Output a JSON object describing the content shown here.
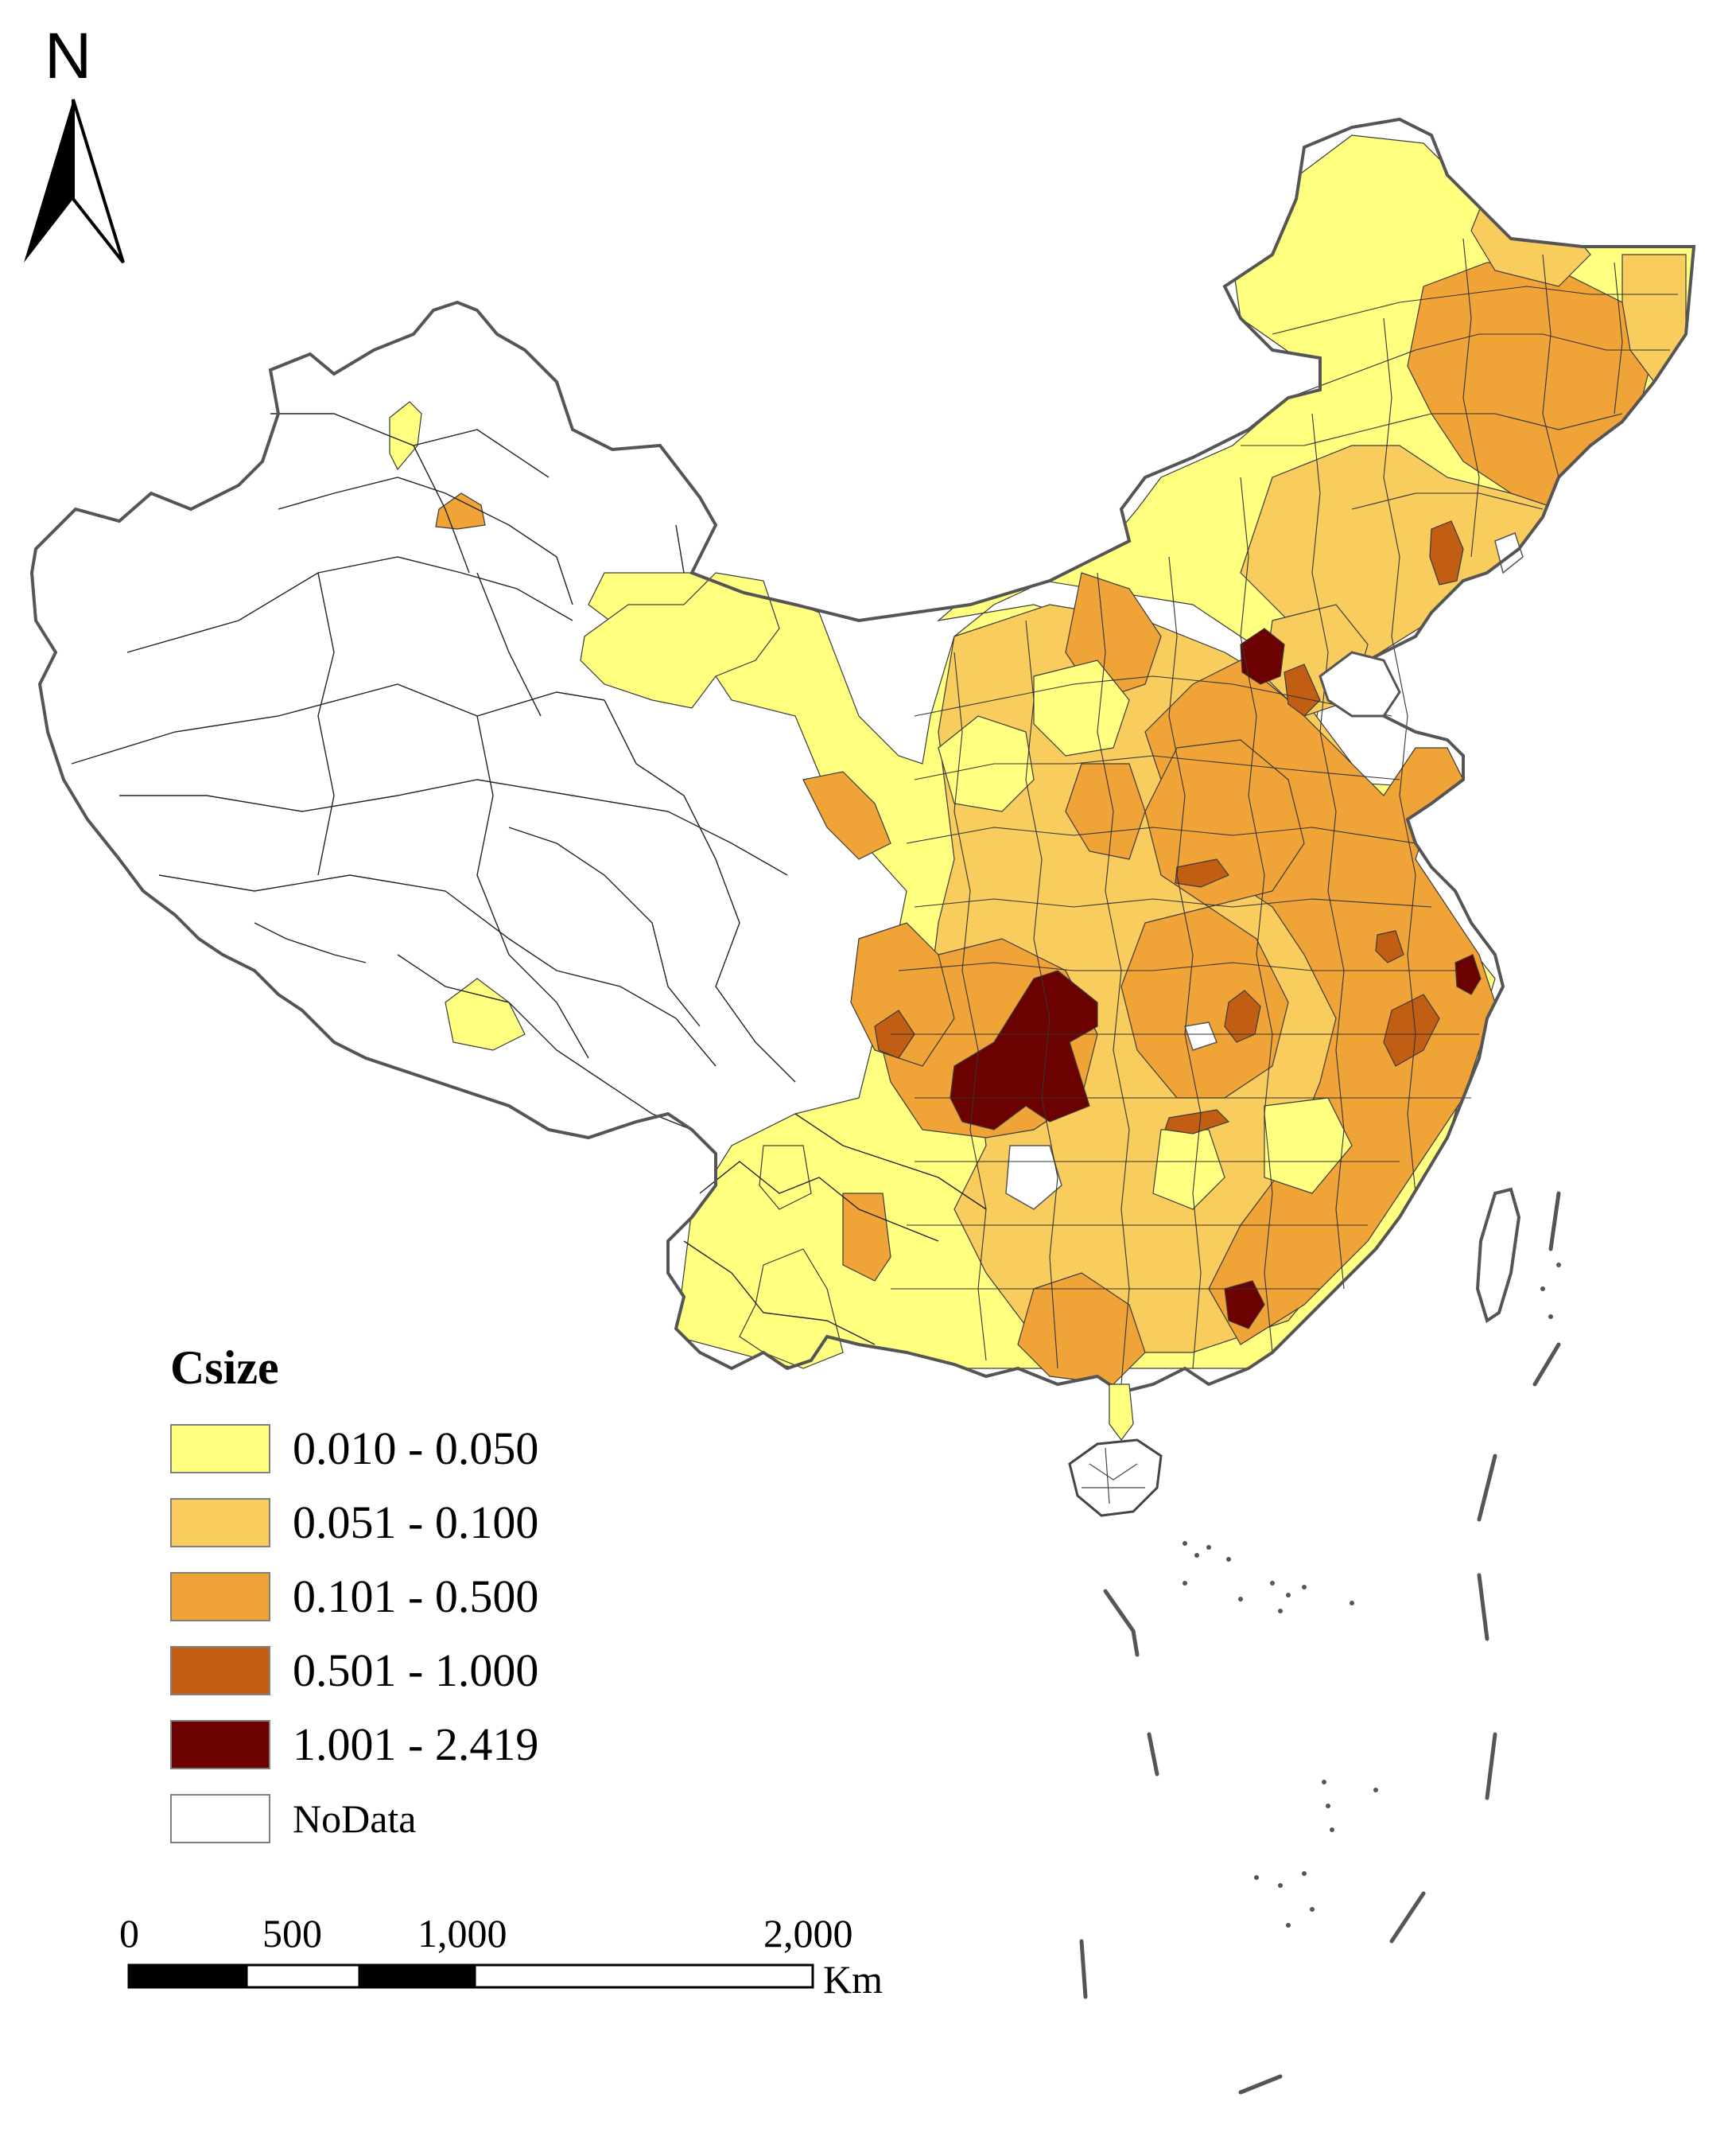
{
  "map": {
    "colors": {
      "class1": "#FFFF80",
      "class2": "#F9CC5E",
      "class3": "#F0A336",
      "class4": "#C25E13",
      "class5": "#6B0101",
      "nodata": "#FFFFFF",
      "boundary": "#555555"
    }
  },
  "north_arrow": {
    "label": "N",
    "icon": "north-arrow-icon"
  },
  "legend": {
    "title": "Csize",
    "items": [
      {
        "label": "0.010 - 0.050",
        "color": "#FFFF80"
      },
      {
        "label": "0.051 - 0.100",
        "color": "#F9CC5E"
      },
      {
        "label": "0.101 - 0.500",
        "color": "#F0A336"
      },
      {
        "label": "0.501 - 1.000",
        "color": "#C25E13"
      },
      {
        "label": "1.001 - 2.419",
        "color": "#6B0101"
      },
      {
        "label": "NoData",
        "color": "#FFFFFF"
      }
    ]
  },
  "scale_bar": {
    "ticks": [
      "0",
      "500",
      "1,000",
      "2,000"
    ],
    "unit": "Km"
  }
}
